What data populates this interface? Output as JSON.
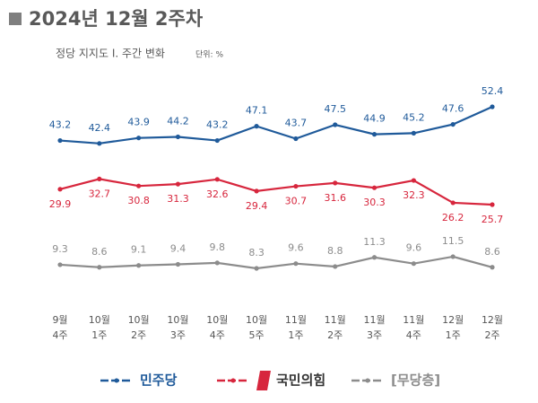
{
  "chart_data": {
    "type": "line",
    "title": "2024년 12월 2주차",
    "subtitle": "정당 지지도 Ⅰ. 주간 변화",
    "unit_note": "단위: %",
    "categories": [
      "9월 4주",
      "10월 1주",
      "10월 2주",
      "10월 3주",
      "10월 4주",
      "10월 5주",
      "11월 1주",
      "11월 2주",
      "11월 3주",
      "11월 4주",
      "12월 1주",
      "12월 2주"
    ],
    "series": [
      {
        "name": "민주당",
        "color": "#1f5a9a",
        "label_position": "above",
        "values": [
          43.2,
          42.4,
          43.9,
          44.2,
          43.2,
          47.1,
          43.7,
          47.5,
          44.9,
          45.2,
          47.6,
          52.4
        ]
      },
      {
        "name": "국민의힘",
        "color": "#d7263d",
        "label_position": "below",
        "values": [
          29.9,
          32.7,
          30.8,
          31.3,
          32.6,
          29.4,
          30.7,
          31.6,
          30.3,
          32.3,
          26.2,
          25.7
        ]
      },
      {
        "name": "[무당층]",
        "color": "#8c8c8c",
        "label_position": "above",
        "values": [
          9.3,
          8.6,
          9.1,
          9.4,
          9.8,
          8.3,
          9.6,
          8.8,
          11.3,
          9.6,
          11.5,
          8.6
        ]
      }
    ],
    "legend": "bottom"
  }
}
